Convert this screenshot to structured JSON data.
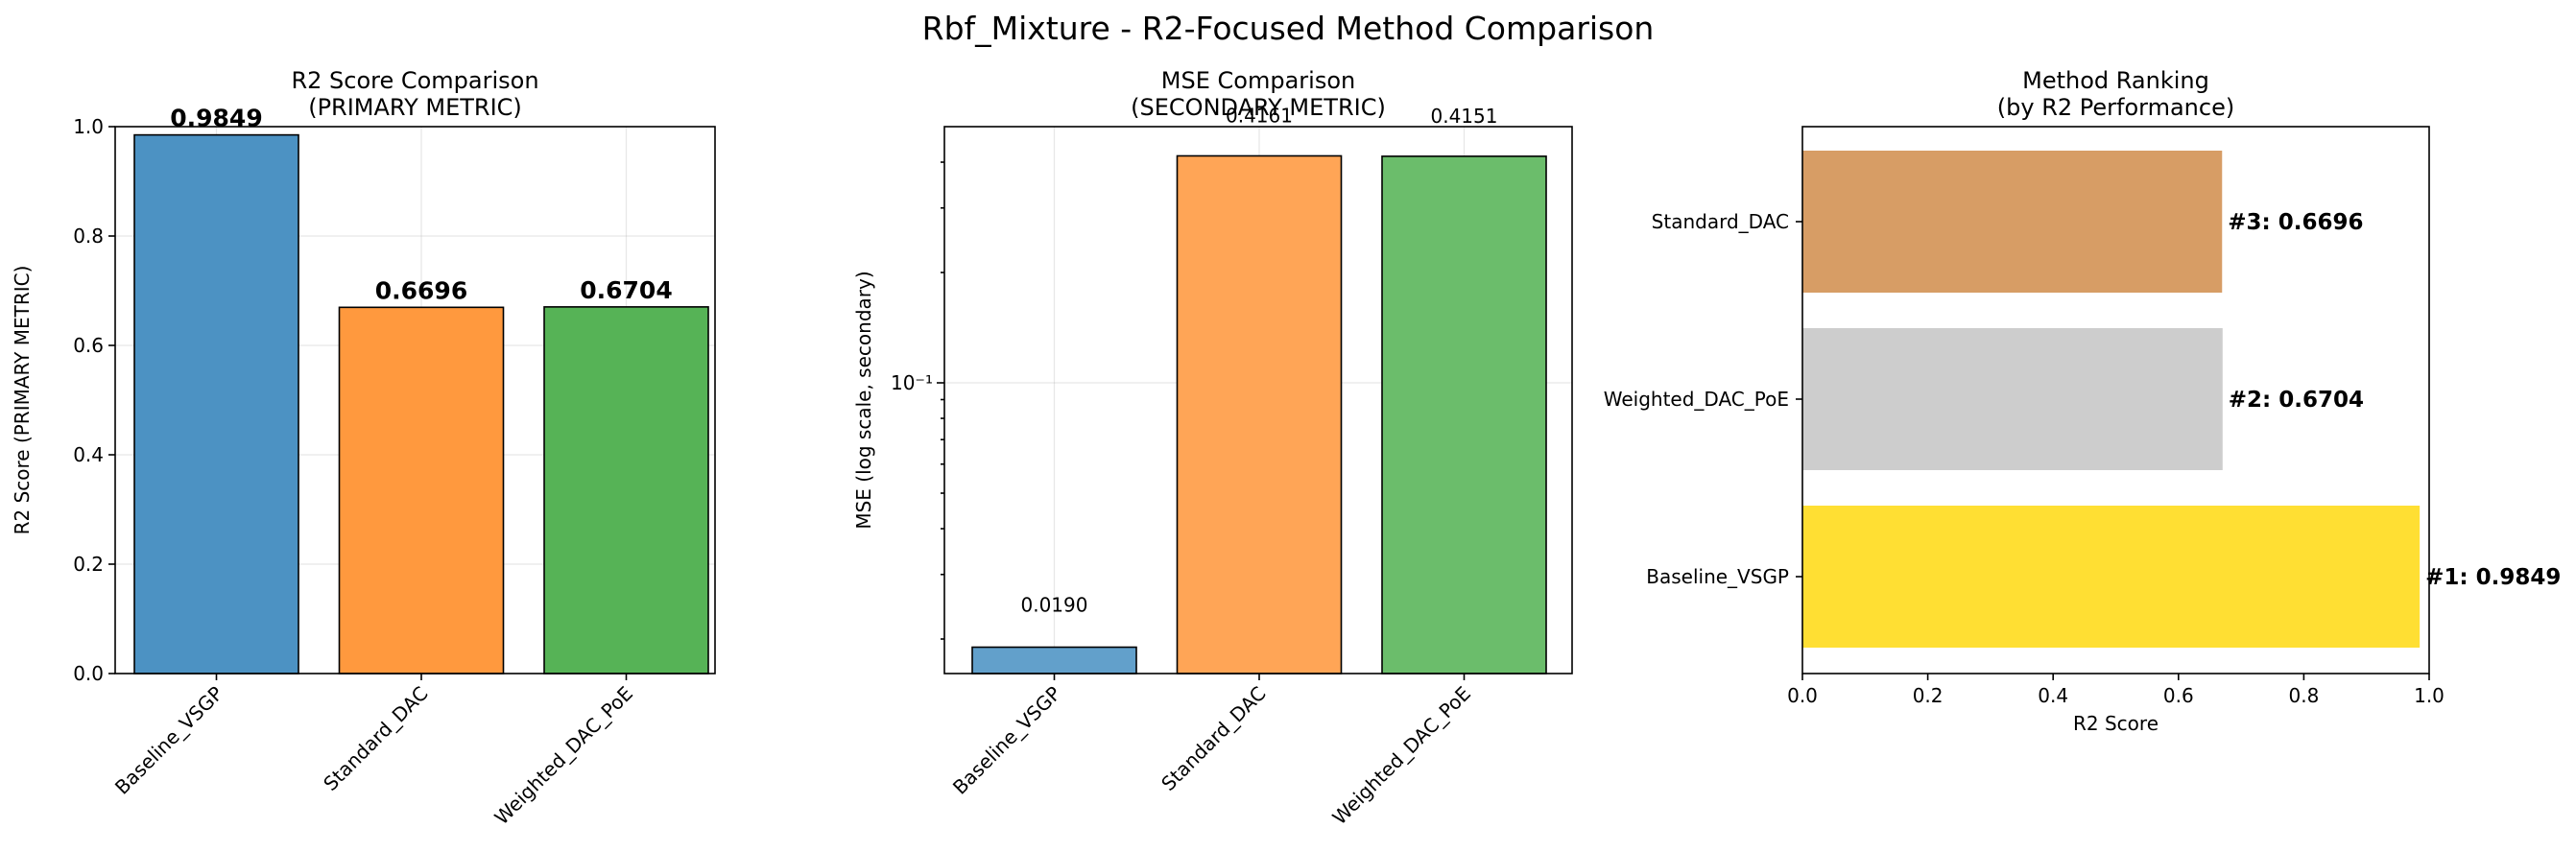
{
  "title": "Rbf_Mixture - R2-Focused Method Comparison",
  "chart_data": [
    {
      "type": "bar",
      "title": "R2 Score Comparison\n(PRIMARY METRIC)",
      "xlabel": "",
      "ylabel": "R2 Score (PRIMARY METRIC)",
      "ylim": [
        0,
        1.0
      ],
      "yticks": [
        0.0,
        0.2,
        0.4,
        0.6,
        0.8,
        1.0
      ],
      "ytick_labels": [
        "0.0",
        "0.2",
        "0.4",
        "0.6",
        "0.8",
        "1.0"
      ],
      "grid": true,
      "categories": [
        "Baseline_VSGP",
        "Standard_DAC",
        "Weighted_DAC_PoE"
      ],
      "values": [
        0.9849,
        0.6696,
        0.6704
      ],
      "value_labels": [
        "0.9849",
        "0.6696",
        "0.6704"
      ],
      "colors": [
        "#1f77b4",
        "#ff7f0e",
        "#2ca02c"
      ]
    },
    {
      "type": "bar",
      "title": "MSE Comparison\n(SECONDARY METRIC)",
      "xlabel": "",
      "ylabel": "MSE (log scale, secondary)",
      "yscale": "log",
      "ylim": [
        0.0161,
        0.5
      ],
      "ytick_labels": [
        "10⁻¹"
      ],
      "grid": true,
      "categories": [
        "Baseline_VSGP",
        "Standard_DAC",
        "Weighted_DAC_PoE"
      ],
      "values": [
        0.019,
        0.4161,
        0.4151
      ],
      "value_labels": [
        "0.0190",
        "0.4161",
        "0.4151"
      ],
      "colors": [
        "#1f77b4",
        "#ff7f0e",
        "#2ca02c"
      ]
    },
    {
      "type": "bar",
      "orientation": "horizontal",
      "title": "Method Ranking\n(by R2 Performance)",
      "xlabel": "R2 Score",
      "ylabel": "",
      "xlim": [
        0,
        1.0
      ],
      "xticks": [
        0.0,
        0.2,
        0.4,
        0.6,
        0.8,
        1.0
      ],
      "xtick_labels": [
        "0.0",
        "0.2",
        "0.4",
        "0.6",
        "0.8",
        "1.0"
      ],
      "grid": false,
      "categories": [
        "Standard_DAC",
        "Weighted_DAC_PoE",
        "Baseline_VSGP"
      ],
      "values": [
        0.6696,
        0.6704,
        0.9849
      ],
      "value_labels": [
        "#3: 0.6696",
        "#2: 0.6704",
        "#1: 0.9849"
      ],
      "colors": [
        "#cd853f",
        "#c0c0c0",
        "#ffd700"
      ]
    }
  ]
}
